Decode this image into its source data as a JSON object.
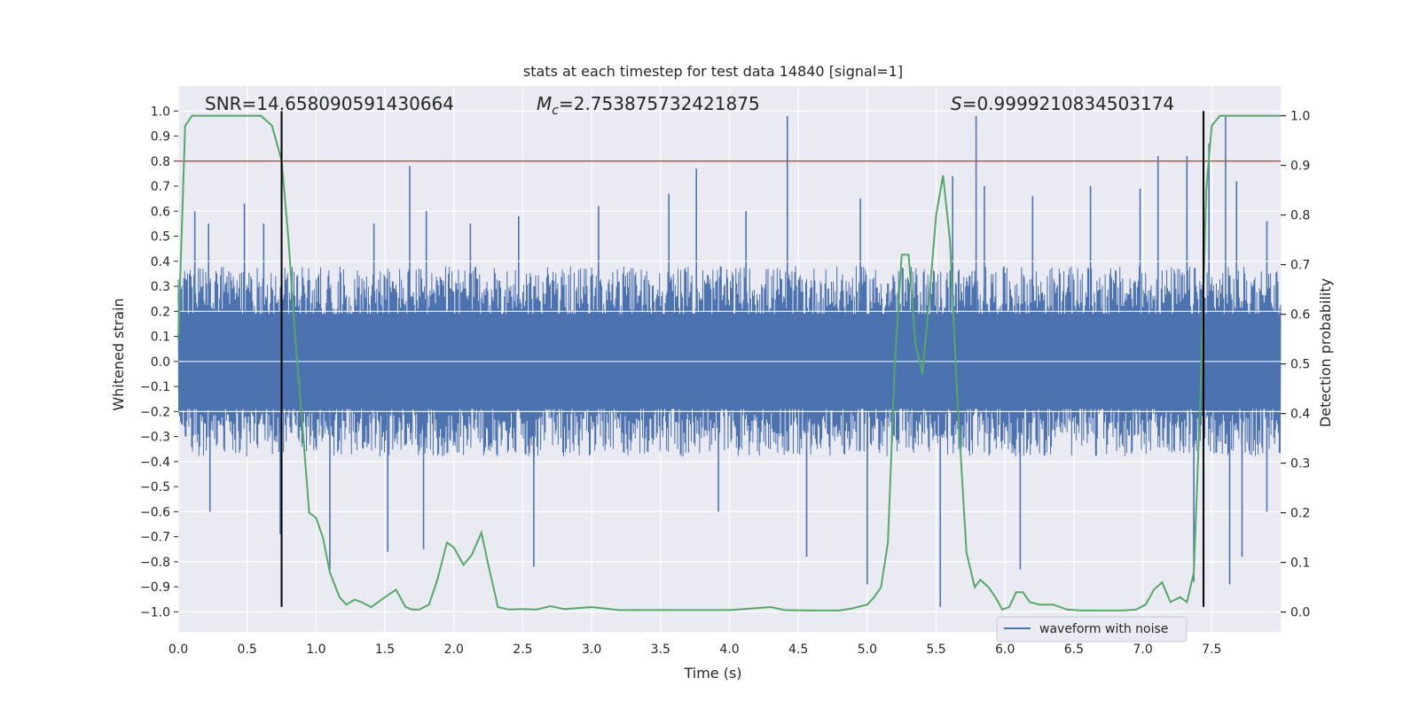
{
  "chart_data": {
    "type": "line",
    "title": "stats at each timestep for test data 14840 [signal=1]",
    "xlabel": "Time (s)",
    "ylabel": "Whitened strain",
    "ylabel_right": "Detection probability",
    "xlim": [
      0.0,
      8.0
    ],
    "ylim": [
      -1.08,
      1.1
    ],
    "ylim_right": [
      -0.04,
      1.06
    ],
    "x_ticks": [
      0.0,
      0.5,
      1.0,
      1.5,
      2.0,
      2.5,
      3.0,
      3.5,
      4.0,
      4.5,
      5.0,
      5.5,
      6.0,
      6.5,
      7.0,
      7.5
    ],
    "x_tick_labels": [
      "0.0",
      "0.5",
      "1.0",
      "1.5",
      "2.0",
      "2.5",
      "3.0",
      "3.5",
      "4.0",
      "4.5",
      "5.0",
      "5.5",
      "6.0",
      "6.5",
      "7.0",
      "7.5"
    ],
    "y_ticks": [
      -1.0,
      -0.9,
      -0.8,
      -0.7,
      -0.6,
      -0.5,
      -0.4,
      -0.3,
      -0.2,
      -0.1,
      0.0,
      0.1,
      0.2,
      0.3,
      0.4,
      0.5,
      0.6,
      0.7,
      0.8,
      0.9,
      1.0
    ],
    "y_tick_labels": [
      "−1.0",
      "−0.9",
      "−0.8",
      "−0.7",
      "−0.6",
      "−0.5",
      "−0.4",
      "−0.3",
      "−0.2",
      "−0.1",
      "0.0",
      "0.1",
      "0.2",
      "0.3",
      "0.4",
      "0.5",
      "0.6",
      "0.7",
      "0.8",
      "0.9",
      "1.0"
    ],
    "y_right_ticks": [
      0.0,
      0.1,
      0.2,
      0.3,
      0.4,
      0.5,
      0.6,
      0.7,
      0.8,
      0.9,
      1.0
    ],
    "y_right_tick_labels": [
      "0.0",
      "0.1",
      "0.2",
      "0.3",
      "0.4",
      "0.5",
      "0.6",
      "0.7",
      "0.8",
      "0.9",
      "1.0"
    ],
    "annotations": {
      "snr": "SNR=14.658090591430664",
      "mc_symbol": "M",
      "mc_sub": "c",
      "mc_value": "=2.753875732421875",
      "s_symbol": "S",
      "s_value": "=0.9999210834503174"
    },
    "threshold": {
      "y": 0.8,
      "color": "#c44e52"
    },
    "vertical_lines": [
      0.75,
      7.44
    ],
    "vline_range": [
      -0.98,
      1.0
    ],
    "series": [
      {
        "name": "waveform with noise",
        "axis": "left",
        "color": "#4c72b0",
        "band_center": 0.0,
        "band_halfwidth": 0.38,
        "spikes_up": [
          {
            "x": 0.12,
            "y": 0.6
          },
          {
            "x": 0.22,
            "y": 0.55
          },
          {
            "x": 0.48,
            "y": 0.63
          },
          {
            "x": 0.62,
            "y": 0.55
          },
          {
            "x": 1.42,
            "y": 0.55
          },
          {
            "x": 1.68,
            "y": 0.78
          },
          {
            "x": 1.8,
            "y": 0.6
          },
          {
            "x": 2.12,
            "y": 0.55
          },
          {
            "x": 2.47,
            "y": 0.58
          },
          {
            "x": 3.05,
            "y": 0.62
          },
          {
            "x": 3.56,
            "y": 0.67
          },
          {
            "x": 3.76,
            "y": 0.77
          },
          {
            "x": 4.12,
            "y": 0.6
          },
          {
            "x": 4.42,
            "y": 0.98
          },
          {
            "x": 4.95,
            "y": 0.65
          },
          {
            "x": 5.62,
            "y": 0.74
          },
          {
            "x": 5.79,
            "y": 0.98
          },
          {
            "x": 5.85,
            "y": 0.7
          },
          {
            "x": 6.2,
            "y": 0.66
          },
          {
            "x": 6.62,
            "y": 0.7
          },
          {
            "x": 6.98,
            "y": 0.69
          },
          {
            "x": 7.11,
            "y": 0.82
          },
          {
            "x": 7.32,
            "y": 0.82
          },
          {
            "x": 7.48,
            "y": 0.87
          },
          {
            "x": 7.6,
            "y": 0.98
          },
          {
            "x": 7.68,
            "y": 0.72
          },
          {
            "x": 7.9,
            "y": 0.56
          }
        ],
        "spikes_down": [
          {
            "x": 0.23,
            "y": -0.6
          },
          {
            "x": 0.74,
            "y": -0.69
          },
          {
            "x": 1.1,
            "y": -0.83
          },
          {
            "x": 1.52,
            "y": -0.76
          },
          {
            "x": 1.78,
            "y": -0.75
          },
          {
            "x": 2.58,
            "y": -0.82
          },
          {
            "x": 3.92,
            "y": -0.6
          },
          {
            "x": 4.56,
            "y": -0.78
          },
          {
            "x": 5.0,
            "y": -0.89
          },
          {
            "x": 5.53,
            "y": -0.98
          },
          {
            "x": 6.11,
            "y": -0.83
          },
          {
            "x": 7.37,
            "y": -0.88
          },
          {
            "x": 7.63,
            "y": -0.89
          },
          {
            "x": 7.72,
            "y": -0.78
          },
          {
            "x": 7.9,
            "y": -0.6
          }
        ]
      },
      {
        "name": "detection probability",
        "axis": "right",
        "color": "#55a868",
        "x": [
          0.0,
          0.05,
          0.1,
          0.15,
          0.2,
          0.3,
          0.4,
          0.5,
          0.6,
          0.68,
          0.75,
          0.8,
          0.85,
          0.9,
          0.95,
          1.0,
          1.05,
          1.1,
          1.17,
          1.22,
          1.28,
          1.33,
          1.4,
          1.45,
          1.5,
          1.58,
          1.65,
          1.7,
          1.75,
          1.82,
          1.88,
          1.95,
          2.0,
          2.07,
          2.13,
          2.2,
          2.25,
          2.32,
          2.4,
          2.5,
          2.6,
          2.7,
          2.8,
          2.9,
          3.0,
          3.2,
          3.5,
          3.8,
          4.0,
          4.2,
          4.3,
          4.4,
          4.6,
          4.8,
          4.9,
          5.0,
          5.05,
          5.1,
          5.15,
          5.2,
          5.25,
          5.3,
          5.35,
          5.4,
          5.44,
          5.5,
          5.55,
          5.6,
          5.65,
          5.72,
          5.78,
          5.82,
          5.88,
          5.93,
          5.98,
          6.03,
          6.08,
          6.13,
          6.18,
          6.25,
          6.35,
          6.45,
          6.55,
          6.65,
          6.75,
          6.85,
          6.95,
          7.02,
          7.08,
          7.14,
          7.2,
          7.27,
          7.32,
          7.37,
          7.42,
          7.46,
          7.5,
          7.56,
          7.62,
          7.7,
          7.8,
          7.9,
          8.0
        ],
        "y": [
          0.55,
          0.98,
          1.0,
          1.0,
          1.0,
          1.0,
          1.0,
          1.0,
          1.0,
          0.98,
          0.91,
          0.75,
          0.55,
          0.38,
          0.2,
          0.19,
          0.15,
          0.08,
          0.03,
          0.015,
          0.025,
          0.02,
          0.01,
          0.02,
          0.03,
          0.045,
          0.01,
          0.005,
          0.005,
          0.015,
          0.065,
          0.14,
          0.13,
          0.095,
          0.115,
          0.16,
          0.095,
          0.01,
          0.005,
          0.006,
          0.005,
          0.012,
          0.006,
          0.008,
          0.01,
          0.004,
          0.004,
          0.004,
          0.004,
          0.008,
          0.01,
          0.004,
          0.003,
          0.003,
          0.008,
          0.015,
          0.03,
          0.05,
          0.14,
          0.5,
          0.72,
          0.72,
          0.54,
          0.48,
          0.6,
          0.8,
          0.88,
          0.75,
          0.45,
          0.12,
          0.05,
          0.065,
          0.05,
          0.03,
          0.005,
          0.01,
          0.04,
          0.04,
          0.02,
          0.015,
          0.015,
          0.005,
          0.003,
          0.003,
          0.003,
          0.003,
          0.005,
          0.015,
          0.045,
          0.06,
          0.02,
          0.03,
          0.02,
          0.08,
          0.45,
          0.85,
          0.98,
          1.0,
          1.0,
          1.0,
          1.0,
          1.0,
          1.0
        ]
      }
    ],
    "legend": {
      "placement": "lower-center-right",
      "label": "waveform with noise"
    }
  }
}
